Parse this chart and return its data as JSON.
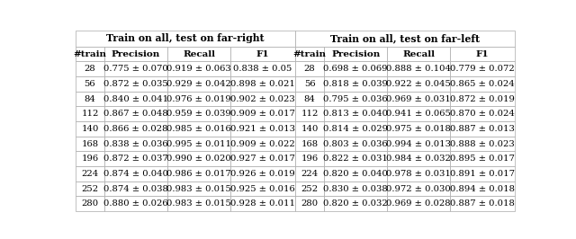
{
  "left_title": "Train on all, test on far-right",
  "right_title": "Train on all, test on far-left",
  "col_headers": [
    "#train",
    "Precision",
    "Recall",
    "F1"
  ],
  "left_data": [
    [
      "28",
      "0.775 ± 0.070",
      "0.919 ± 0.063",
      "0.838 ± 0.05"
    ],
    [
      "56",
      "0.872 ± 0.035",
      "0.929 ± 0.042",
      "0.898 ± 0.021"
    ],
    [
      "84",
      "0.840 ± 0.041",
      "0.976 ± 0.019",
      "0.902 ± 0.023"
    ],
    [
      "112",
      "0.867 ± 0.048",
      "0.959 ± 0.039",
      "0.909 ± 0.017"
    ],
    [
      "140",
      "0.866 ± 0.028",
      "0.985 ± 0.016",
      "0.921 ± 0.013"
    ],
    [
      "168",
      "0.838 ± 0.036",
      "0.995 ± 0.011",
      "0.909 ± 0.022"
    ],
    [
      "196",
      "0.872 ± 0.037",
      "0.990 ± 0.020",
      "0.927 ± 0.017"
    ],
    [
      "224",
      "0.874 ± 0.040",
      "0.986 ± 0.017",
      "0.926 ± 0.019"
    ],
    [
      "252",
      "0.874 ± 0.038",
      "0.983 ± 0.015",
      "0.925 ± 0.016"
    ],
    [
      "280",
      "0.880 ± 0.026",
      "0.983 ± 0.015",
      "0.928 ± 0.011"
    ]
  ],
  "right_data": [
    [
      "28",
      "0.698 ± 0.069",
      "0.888 ± 0.104",
      "0.779 ± 0.072"
    ],
    [
      "56",
      "0.818 ± 0.039",
      "0.922 ± 0.045",
      "0.865 ± 0.024"
    ],
    [
      "84",
      "0.795 ± 0.036",
      "0.969 ± 0.031",
      "0.872 ± 0.019"
    ],
    [
      "112",
      "0.813 ± 0.040",
      "0.941 ± 0.065",
      "0.870 ± 0.024"
    ],
    [
      "140",
      "0.814 ± 0.029",
      "0.975 ± 0.018",
      "0.887 ± 0.013"
    ],
    [
      "168",
      "0.803 ± 0.036",
      "0.994 ± 0.013",
      "0.888 ± 0.023"
    ],
    [
      "196",
      "0.822 ± 0.031",
      "0.984 ± 0.032",
      "0.895 ± 0.017"
    ],
    [
      "224",
      "0.820 ± 0.040",
      "0.978 ± 0.031",
      "0.891 ± 0.017"
    ],
    [
      "252",
      "0.830 ± 0.038",
      "0.972 ± 0.030",
      "0.894 ± 0.018"
    ],
    [
      "280",
      "0.820 ± 0.032",
      "0.969 ± 0.028",
      "0.887 ± 0.018"
    ]
  ],
  "title_bg": "#ffffff",
  "header_bg": "#ffffff",
  "cell_bg": "#ffffff",
  "border_color": "#aaaaaa",
  "text_color": "#000000",
  "title_fontsize": 7.8,
  "header_fontsize": 7.5,
  "cell_fontsize": 7.2,
  "fig_width": 6.4,
  "fig_height": 2.66,
  "dpi": 100
}
